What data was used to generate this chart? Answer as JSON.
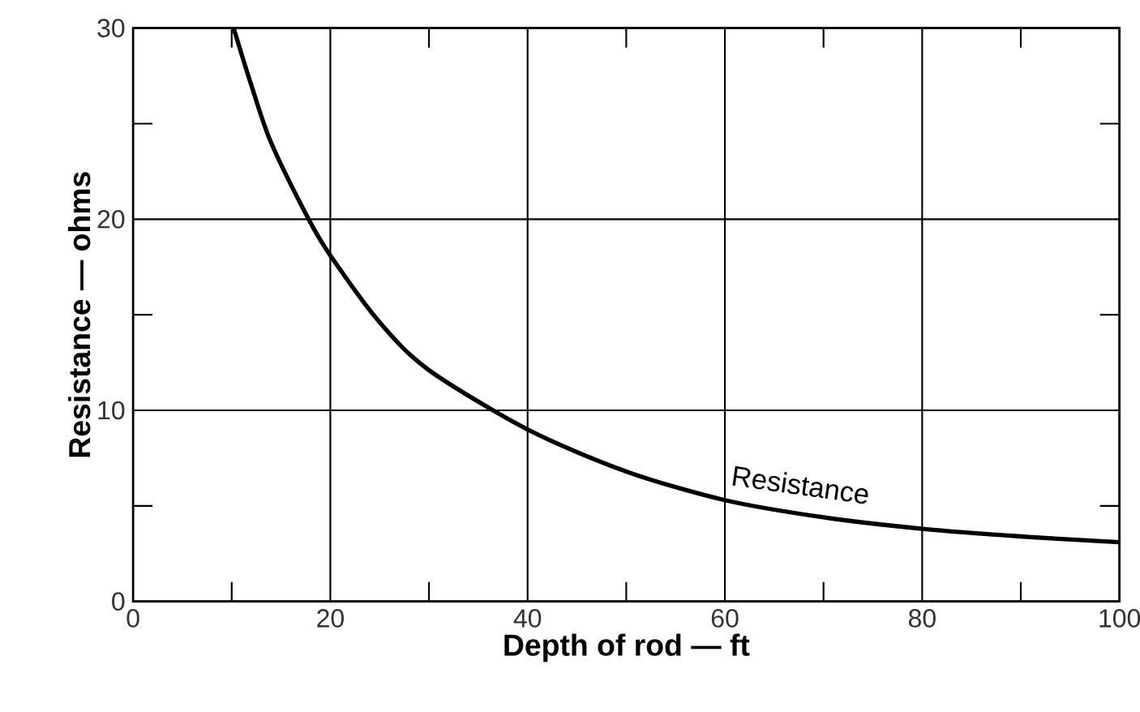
{
  "chart_data": {
    "type": "line",
    "xlabel": "Depth of rod — ft",
    "ylabel": "Resistance — ohms",
    "x": [
      10.2,
      12,
      14,
      17.8,
      20,
      25,
      30,
      40,
      50,
      60,
      70,
      80,
      90,
      100
    ],
    "series": [
      {
        "name": "Resistance",
        "color": "#000000",
        "values": [
          30,
          27,
          24,
          20,
          18.1,
          14.6,
          12.1,
          9.0,
          6.8,
          5.3,
          4.4,
          3.8,
          3.4,
          3.1
        ]
      }
    ],
    "xlim": [
      0,
      100
    ],
    "ylim": [
      0,
      30
    ],
    "xticks": [
      0,
      {
        "value": 10,
        "label": null
      },
      20,
      {
        "value": 30,
        "label": null
      },
      40,
      {
        "value": 50,
        "label": null
      },
      60,
      {
        "value": 70,
        "label": null
      },
      80,
      {
        "value": 90,
        "label": null
      },
      100
    ],
    "yticks": [
      0,
      {
        "value": 5,
        "label": null
      },
      10,
      {
        "value": 15,
        "label": null
      },
      20,
      {
        "value": 25,
        "label": null
      },
      30
    ],
    "grid": true,
    "marker": "none",
    "line_style": "solid",
    "legend": false
  }
}
